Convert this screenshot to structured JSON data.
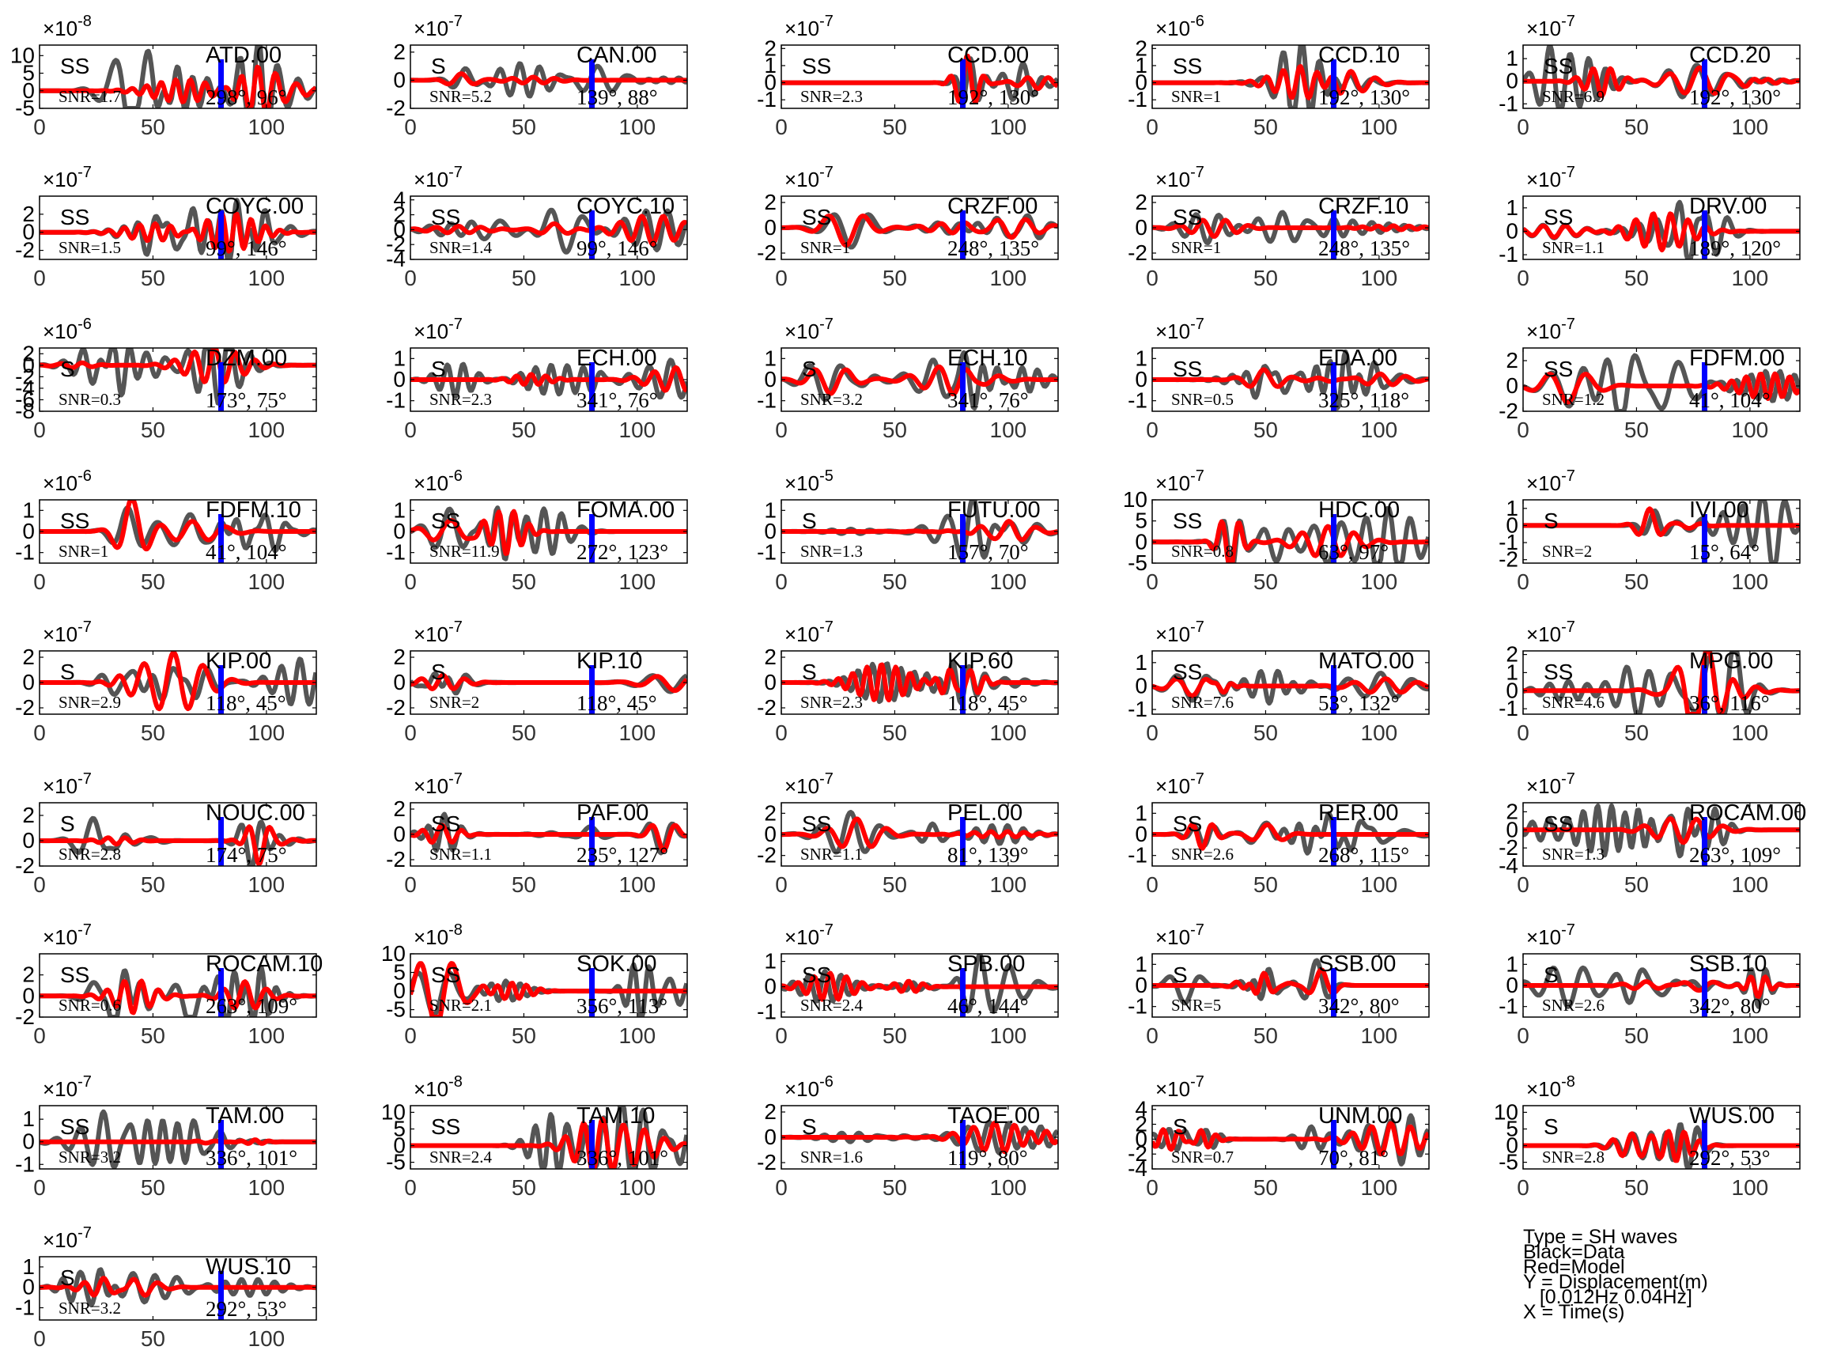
{
  "layout": {
    "cols": 5,
    "xticks": [
      0,
      50,
      100
    ],
    "xlim": [
      0,
      122
    ]
  },
  "colors": {
    "data": "#555555",
    "model": "#ff0000",
    "marker": "#0000ff",
    "axis": "#000000",
    "tick_label": "#333333"
  },
  "chart_data": [
    {
      "station": "ATD.00",
      "phase": "SS",
      "snr": "SNR=1.7",
      "az": "298°, 96°",
      "exponent": "-8",
      "yticks": [
        -5,
        0,
        5,
        10
      ],
      "ylim": [
        -5,
        13
      ],
      "peak": 12,
      "seed": 1
    },
    {
      "station": "CAN.00",
      "phase": "S",
      "snr": "SNR=5.2",
      "az": "139°, 88°",
      "exponent": "-7",
      "yticks": [
        -2,
        0,
        2
      ],
      "ylim": [
        -2,
        2.5
      ],
      "peak": 2,
      "seed": 2
    },
    {
      "station": "CCD.00",
      "phase": "SS",
      "snr": "SNR=2.3",
      "az": "192°, 130°",
      "exponent": "-7",
      "yticks": [
        -1,
        0,
        1,
        2
      ],
      "ylim": [
        -1.5,
        2.2
      ],
      "peak": 2,
      "seed": 3
    },
    {
      "station": "CCD.10",
      "phase": "SS",
      "snr": "SNR=1",
      "az": "192°, 130°",
      "exponent": "-6",
      "yticks": [
        -1,
        0,
        1,
        2
      ],
      "ylim": [
        -1.5,
        2.2
      ],
      "peak": 2,
      "seed": 4
    },
    {
      "station": "CCD.20",
      "phase": "SS",
      "snr": "SNR=6.9",
      "az": "192°, 130°",
      "exponent": "-7",
      "yticks": [
        -1,
        0,
        1
      ],
      "ylim": [
        -1.2,
        1.6
      ],
      "peak": 1,
      "seed": 5
    },
    {
      "station": "COYC.00",
      "phase": "SS",
      "snr": "SNR=1.5",
      "az": "99°, 146°",
      "exponent": "-7",
      "yticks": [
        -2,
        0,
        2
      ],
      "ylim": [
        -3,
        4
      ],
      "peak": 3,
      "seed": 6
    },
    {
      "station": "COYC.10",
      "phase": "SS",
      "snr": "SNR=1.4",
      "az": "99°, 146°",
      "exponent": "-7",
      "yticks": [
        -4,
        -2,
        0,
        2,
        4
      ],
      "ylim": [
        -4,
        4.5
      ],
      "peak": 3.5,
      "seed": 7
    },
    {
      "station": "CRZF.00",
      "phase": "SS",
      "snr": "SNR=1",
      "az": "248°, 135°",
      "exponent": "-7",
      "yticks": [
        -2,
        0,
        2
      ],
      "ylim": [
        -2.5,
        2.5
      ],
      "peak": 2,
      "seed": 8
    },
    {
      "station": "CRZF.10",
      "phase": "SS",
      "snr": "SNR=1",
      "az": "248°, 135°",
      "exponent": "-7",
      "yticks": [
        -2,
        0,
        2
      ],
      "ylim": [
        -2.5,
        2.5
      ],
      "peak": 2,
      "seed": 9
    },
    {
      "station": "DRV.00",
      "phase": "SS",
      "snr": "SNR=1.1",
      "az": "189°, 120°",
      "exponent": "-7",
      "yticks": [
        -1,
        0,
        1
      ],
      "ylim": [
        -1.2,
        1.5
      ],
      "peak": 1,
      "seed": 10
    },
    {
      "station": "DZM.00",
      "phase": "S",
      "snr": "SNR=0.3",
      "az": "173°, 75°",
      "exponent": "-6",
      "yticks": [
        -8,
        -6,
        -4,
        -2,
        0,
        2
      ],
      "ylim": [
        -8,
        3
      ],
      "peak": 3,
      "seed": 11
    },
    {
      "station": "ECH.00",
      "phase": "S",
      "snr": "SNR=2.3",
      "az": "341°, 76°",
      "exponent": "-7",
      "yticks": [
        -1,
        0,
        1
      ],
      "ylim": [
        -1.5,
        1.5
      ],
      "peak": 1.3,
      "seed": 12
    },
    {
      "station": "ECH.10",
      "phase": "S",
      "snr": "SNR=3.2",
      "az": "341°, 76°",
      "exponent": "-7",
      "yticks": [
        -1,
        0,
        1
      ],
      "ylim": [
        -1.5,
        1.5
      ],
      "peak": 1.3,
      "seed": 13
    },
    {
      "station": "EDA.00",
      "phase": "SS",
      "snr": "SNR=0.5",
      "az": "325°, 118°",
      "exponent": "-7",
      "yticks": [
        -1,
        0,
        1
      ],
      "ylim": [
        -1.5,
        1.5
      ],
      "peak": 1,
      "seed": 14
    },
    {
      "station": "FDFM.00",
      "phase": "SS",
      "snr": "SNR=1.2",
      "az": "41°, 104°",
      "exponent": "-7",
      "yticks": [
        -2,
        0,
        2
      ],
      "ylim": [
        -2,
        3
      ],
      "peak": 2,
      "seed": 15
    },
    {
      "station": "FDFM.10",
      "phase": "SS",
      "snr": "SNR=1",
      "az": "41°, 104°",
      "exponent": "-6",
      "yticks": [
        -1,
        0,
        1
      ],
      "ylim": [
        -1.5,
        1.5
      ],
      "peak": 1,
      "seed": 16
    },
    {
      "station": "FOMA.00",
      "phase": "SS",
      "snr": "SNR=11.9",
      "az": "272°, 123°",
      "exponent": "-6",
      "yticks": [
        -1,
        0,
        1
      ],
      "ylim": [
        -1.5,
        1.5
      ],
      "peak": 1,
      "seed": 17
    },
    {
      "station": "FUTU.00",
      "phase": "S",
      "snr": "SNR=1.3",
      "az": "157°, 70°",
      "exponent": "-5",
      "yticks": [
        -1,
        0,
        1
      ],
      "ylim": [
        -1.5,
        1.5
      ],
      "peak": 1,
      "seed": 18
    },
    {
      "station": "HDC.00",
      "phase": "SS",
      "snr": "SNR=0.8",
      "az": "63°, 97°",
      "exponent": "-7",
      "yticks": [
        -5,
        0,
        5,
        10
      ],
      "ylim": [
        -5,
        10
      ],
      "peak": 8,
      "seed": 19
    },
    {
      "station": "IVI.00",
      "phase": "S",
      "snr": "SNR=2",
      "az": "15°, 64°",
      "exponent": "-7",
      "yticks": [
        -2,
        -1,
        0,
        1
      ],
      "ylim": [
        -2.2,
        1.5
      ],
      "peak": 1.2,
      "seed": 20
    },
    {
      "station": "KIP.00",
      "phase": "S",
      "snr": "SNR=2.9",
      "az": "118°, 45°",
      "exponent": "-7",
      "yticks": [
        -2,
        0,
        2
      ],
      "ylim": [
        -2.5,
        2.5
      ],
      "peak": 2,
      "seed": 21
    },
    {
      "station": "KIP.10",
      "phase": "S",
      "snr": "SNR=2",
      "az": "118°, 45°",
      "exponent": "-7",
      "yticks": [
        -2,
        0,
        2
      ],
      "ylim": [
        -2.5,
        2.5
      ],
      "peak": 2,
      "seed": 22
    },
    {
      "station": "KIP.60",
      "phase": "S",
      "snr": "SNR=2.3",
      "az": "118°, 45°",
      "exponent": "-7",
      "yticks": [
        -2,
        0,
        2
      ],
      "ylim": [
        -2.5,
        2.5
      ],
      "peak": 2,
      "seed": 23
    },
    {
      "station": "MATO.00",
      "phase": "SS",
      "snr": "SNR=7.6",
      "az": "53°, 132°",
      "exponent": "-7",
      "yticks": [
        -1,
        0,
        1
      ],
      "ylim": [
        -1.2,
        1.5
      ],
      "peak": 1.1,
      "seed": 24
    },
    {
      "station": "MPG.00",
      "phase": "SS",
      "snr": "SNR=4.6",
      "az": "36°, 116°",
      "exponent": "-7",
      "yticks": [
        -1,
        0,
        1,
        2
      ],
      "ylim": [
        -1.3,
        2.2
      ],
      "peak": 2,
      "seed": 25
    },
    {
      "station": "NOUC.00",
      "phase": "S",
      "snr": "SNR=2.8",
      "az": "174°, 75°",
      "exponent": "-7",
      "yticks": [
        -2,
        0,
        2
      ],
      "ylim": [
        -2,
        3
      ],
      "peak": 2.5,
      "seed": 26
    },
    {
      "station": "PAF.00",
      "phase": "SS",
      "snr": "SNR=1.1",
      "az": "235°, 127°",
      "exponent": "-7",
      "yticks": [
        -2,
        0,
        2
      ],
      "ylim": [
        -2.5,
        2.5
      ],
      "peak": 2,
      "seed": 27
    },
    {
      "station": "PEL.00",
      "phase": "SS",
      "snr": "SNR=1.1",
      "az": "81°, 139°",
      "exponent": "-7",
      "yticks": [
        -2,
        0,
        2
      ],
      "ylim": [
        -3,
        3
      ],
      "peak": 2,
      "seed": 28
    },
    {
      "station": "RER.00",
      "phase": "SS",
      "snr": "SNR=2.6",
      "az": "268°, 115°",
      "exponent": "-7",
      "yticks": [
        -1,
        0,
        1
      ],
      "ylim": [
        -1.5,
        1.5
      ],
      "peak": 1,
      "seed": 29
    },
    {
      "station": "ROCAM.00",
      "phase": "SS",
      "snr": "SNR=1.3",
      "az": "263°, 109°",
      "exponent": "-7",
      "yticks": [
        -4,
        -2,
        0,
        2
      ],
      "ylim": [
        -4,
        3
      ],
      "peak": 2.5,
      "seed": 30
    },
    {
      "station": "ROCAM.10",
      "phase": "SS",
      "snr": "SNR=0.6",
      "az": "263°, 109°",
      "exponent": "-7",
      "yticks": [
        -2,
        0,
        2
      ],
      "ylim": [
        -2,
        4
      ],
      "peak": 3,
      "seed": 31
    },
    {
      "station": "SOK.00",
      "phase": "SS",
      "snr": "SNR=2.1",
      "az": "356°, 113°",
      "exponent": "-8",
      "yticks": [
        -5,
        0,
        5,
        10
      ],
      "ylim": [
        -7,
        10
      ],
      "peak": 9,
      "seed": 32
    },
    {
      "station": "SPB.00",
      "phase": "SS",
      "snr": "SNR=2.4",
      "az": "46°, 144°",
      "exponent": "-7",
      "yticks": [
        -1,
        0,
        1
      ],
      "ylim": [
        -1.2,
        1.3
      ],
      "peak": 1,
      "seed": 33
    },
    {
      "station": "SSB.00",
      "phase": "S",
      "snr": "SNR=5",
      "az": "342°, 80°",
      "exponent": "-7",
      "yticks": [
        -1,
        0,
        1
      ],
      "ylim": [
        -1.5,
        1.5
      ],
      "peak": 1,
      "seed": 34
    },
    {
      "station": "SSB.10",
      "phase": "S",
      "snr": "SNR=2.6",
      "az": "342°, 80°",
      "exponent": "-7",
      "yticks": [
        -1,
        0,
        1
      ],
      "ylim": [
        -1.5,
        1.5
      ],
      "peak": 1,
      "seed": 35
    },
    {
      "station": "TAM.00",
      "phase": "SS",
      "snr": "SNR=3.2",
      "az": "336°, 101°",
      "exponent": "-7",
      "yticks": [
        -1,
        0,
        1
      ],
      "ylim": [
        -1.2,
        1.6
      ],
      "peak": 1.2,
      "seed": 36
    },
    {
      "station": "TAM.10",
      "phase": "SS",
      "snr": "SNR=2.4",
      "az": "336°, 101°",
      "exponent": "-8",
      "yticks": [
        -5,
        0,
        5,
        10
      ],
      "ylim": [
        -7,
        12
      ],
      "peak": 10,
      "seed": 37
    },
    {
      "station": "TAOE.00",
      "phase": "S",
      "snr": "SNR=1.6",
      "az": "119°, 80°",
      "exponent": "-6",
      "yticks": [
        -2,
        0,
        2
      ],
      "ylim": [
        -2.5,
        2.5
      ],
      "peak": 2,
      "seed": 38
    },
    {
      "station": "UNM.00",
      "phase": "S",
      "snr": "SNR=0.7",
      "az": "70°, 81°",
      "exponent": "-7",
      "yticks": [
        -4,
        -2,
        0,
        2,
        4
      ],
      "ylim": [
        -4,
        4.5
      ],
      "peak": 3.5,
      "seed": 39
    },
    {
      "station": "WUS.00",
      "phase": "S",
      "snr": "SNR=2.8",
      "az": "292°, 53°",
      "exponent": "-8",
      "yticks": [
        -5,
        0,
        5,
        10
      ],
      "ylim": [
        -7,
        12
      ],
      "peak": 10,
      "seed": 40
    },
    {
      "station": "WUS.10",
      "phase": "S",
      "snr": "SNR=3.2",
      "az": "292°, 53°",
      "exponent": "-7",
      "yticks": [
        -1,
        0,
        1
      ],
      "ylim": [
        -1.6,
        1.5
      ],
      "peak": 1,
      "seed": 41
    }
  ],
  "legend": {
    "line1": "Type = SH waves",
    "line2": "Black=Data",
    "line3": "Red=Model",
    "line4": "Y = Displacement(m)",
    "line5": "   [0.012Hz 0.04Hz]",
    "line6": "X = Time(s)"
  }
}
